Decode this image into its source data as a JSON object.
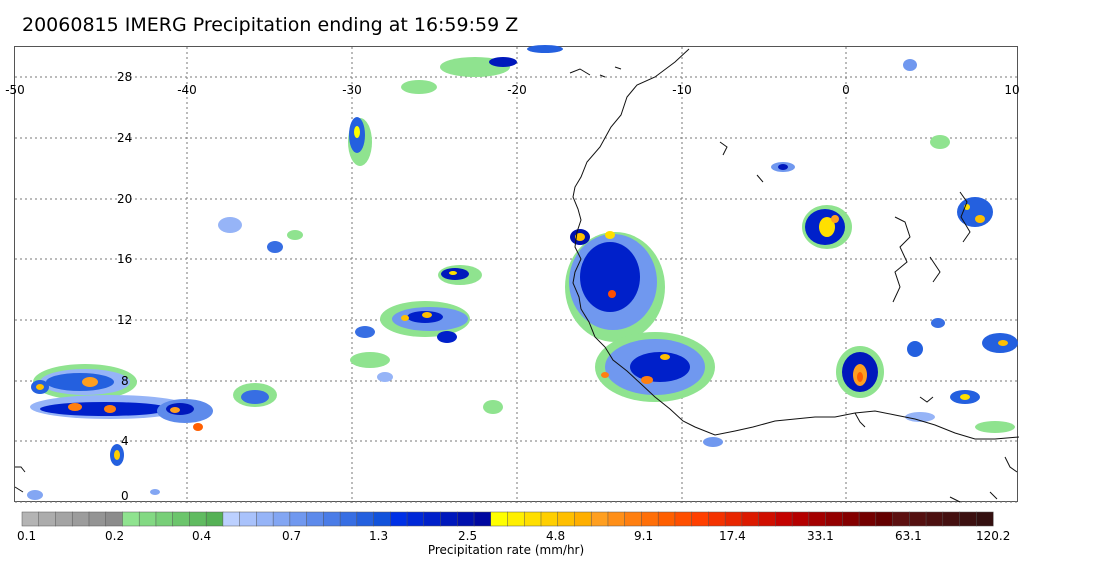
{
  "title": "20060815 IMERG Precipitation ending at 16:59:59 Z",
  "map": {
    "lon_range": [
      -50,
      10
    ],
    "lat_range": [
      -0.5,
      30
    ],
    "lon_ticks": [
      "-50",
      "-40",
      "-30",
      "-20",
      "-10",
      "0",
      "10"
    ],
    "lat_ticks": [
      "28",
      "24",
      "20",
      "16",
      "12",
      "8",
      "4",
      "0"
    ],
    "grid": true
  },
  "legend": {
    "title": "Precipitation rate (mm/hr)",
    "tick_labels": [
      "0.1",
      "0.2",
      "0.4",
      "0.7",
      "1.3",
      "2.5",
      "4.8",
      "9.1",
      "17.4",
      "33.1",
      "63.1",
      "120.2"
    ],
    "colors": [
      "#b4b4b4",
      "#acacac",
      "#a4a4a4",
      "#9c9c9c",
      "#949494",
      "#8c8c8c",
      "#8fe38f",
      "#83d983",
      "#78cf78",
      "#6cc56c",
      "#60bb60",
      "#55b155",
      "#bcd0ff",
      "#a9c2fb",
      "#96b4f7",
      "#83a6f3",
      "#7098ef",
      "#5d8aeb",
      "#4a7ce7",
      "#376ee3",
      "#2460df",
      "#1152db",
      "#0030e6",
      "#0028d8",
      "#0020ca",
      "#0018bc",
      "#0010ae",
      "#0008a0",
      "#ffff00",
      "#ffef00",
      "#ffdf00",
      "#ffcf00",
      "#ffbf00",
      "#ffaf00",
      "#ff9f20",
      "#ff8f18",
      "#ff7f10",
      "#ff6f08",
      "#ff5f00",
      "#ff4f00",
      "#ff3f00",
      "#f43200",
      "#e82600",
      "#dc1a00",
      "#d00e00",
      "#c40200",
      "#b40000",
      "#a40000",
      "#940000",
      "#840000",
      "#740000",
      "#640000",
      "#5c1010",
      "#541010",
      "#4c1010",
      "#441010",
      "#3c1010",
      "#341010"
    ]
  }
}
